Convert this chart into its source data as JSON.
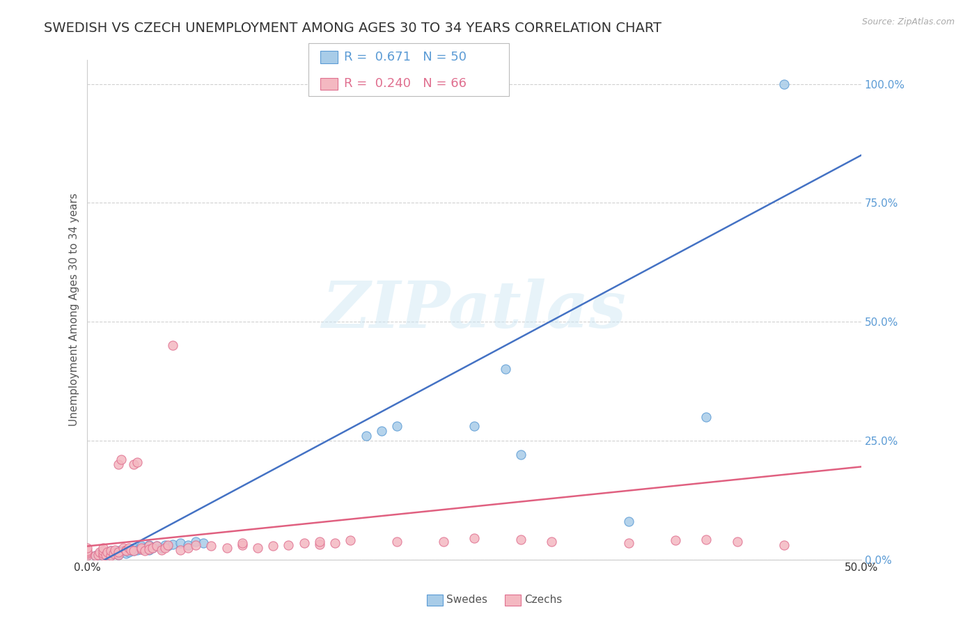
{
  "title": "SWEDISH VS CZECH UNEMPLOYMENT AMONG AGES 30 TO 34 YEARS CORRELATION CHART",
  "source": "Source: ZipAtlas.com",
  "ylabel": "Unemployment Among Ages 30 to 34 years",
  "xlabel_swedes": "Swedes",
  "xlabel_czechs": "Czechs",
  "xlim": [
    0.0,
    0.5
  ],
  "ylim": [
    0.0,
    1.05
  ],
  "yticks": [
    0.0,
    0.25,
    0.5,
    0.75,
    1.0
  ],
  "ytick_labels": [
    "0.0%",
    "25.0%",
    "50.0%",
    "75.0%",
    "100.0%"
  ],
  "xticks": [
    0.0,
    0.5
  ],
  "xtick_labels": [
    "0.0%",
    "50.0%"
  ],
  "legend_blue_r": "0.671",
  "legend_blue_n": "50",
  "legend_pink_r": "0.240",
  "legend_pink_n": "66",
  "blue_scatter_color": "#a8cce8",
  "blue_edge_color": "#5b9bd5",
  "pink_scatter_color": "#f4b8c1",
  "pink_edge_color": "#e07090",
  "blue_line_color": "#4472c4",
  "pink_line_color": "#e06080",
  "yaxis_color": "#5b9bd5",
  "watermark_text": "ZIPatlas",
  "swedes_x": [
    0.0,
    0.005,
    0.007,
    0.008,
    0.01,
    0.01,
    0.01,
    0.012,
    0.013,
    0.015,
    0.015,
    0.015,
    0.017,
    0.018,
    0.02,
    0.02,
    0.02,
    0.022,
    0.023,
    0.025,
    0.025,
    0.027,
    0.028,
    0.03,
    0.03,
    0.032,
    0.035,
    0.035,
    0.037,
    0.04,
    0.04,
    0.042,
    0.045,
    0.048,
    0.05,
    0.052,
    0.055,
    0.06,
    0.065,
    0.07,
    0.075,
    0.18,
    0.19,
    0.2,
    0.25,
    0.27,
    0.28,
    0.35,
    0.4,
    0.45
  ],
  "swedes_y": [
    0.01,
    0.008,
    0.01,
    0.012,
    0.008,
    0.01,
    0.015,
    0.01,
    0.012,
    0.01,
    0.015,
    0.018,
    0.012,
    0.015,
    0.01,
    0.012,
    0.018,
    0.015,
    0.018,
    0.012,
    0.02,
    0.015,
    0.02,
    0.018,
    0.025,
    0.02,
    0.022,
    0.028,
    0.025,
    0.02,
    0.03,
    0.025,
    0.028,
    0.025,
    0.03,
    0.028,
    0.032,
    0.035,
    0.03,
    0.038,
    0.035,
    0.26,
    0.27,
    0.28,
    0.28,
    0.4,
    0.22,
    0.08,
    0.3,
    1.0
  ],
  "czechs_x": [
    0.0,
    0.0,
    0.0,
    0.0,
    0.0,
    0.005,
    0.007,
    0.008,
    0.01,
    0.01,
    0.01,
    0.01,
    0.012,
    0.013,
    0.015,
    0.015,
    0.017,
    0.018,
    0.02,
    0.02,
    0.02,
    0.022,
    0.023,
    0.025,
    0.025,
    0.027,
    0.028,
    0.03,
    0.03,
    0.032,
    0.035,
    0.035,
    0.037,
    0.04,
    0.04,
    0.042,
    0.045,
    0.048,
    0.05,
    0.052,
    0.055,
    0.06,
    0.065,
    0.07,
    0.08,
    0.09,
    0.1,
    0.1,
    0.11,
    0.12,
    0.13,
    0.14,
    0.15,
    0.15,
    0.16,
    0.17,
    0.2,
    0.23,
    0.25,
    0.28,
    0.3,
    0.35,
    0.38,
    0.4,
    0.42,
    0.45
  ],
  "czechs_y": [
    0.008,
    0.012,
    0.015,
    0.018,
    0.025,
    0.008,
    0.01,
    0.015,
    0.008,
    0.012,
    0.018,
    0.025,
    0.01,
    0.015,
    0.008,
    0.018,
    0.012,
    0.02,
    0.01,
    0.015,
    0.2,
    0.21,
    0.025,
    0.02,
    0.018,
    0.025,
    0.02,
    0.018,
    0.2,
    0.205,
    0.022,
    0.025,
    0.018,
    0.028,
    0.022,
    0.025,
    0.028,
    0.02,
    0.025,
    0.03,
    0.45,
    0.02,
    0.025,
    0.03,
    0.028,
    0.025,
    0.03,
    0.035,
    0.025,
    0.028,
    0.03,
    0.035,
    0.032,
    0.038,
    0.035,
    0.04,
    0.038,
    0.038,
    0.045,
    0.042,
    0.038,
    0.035,
    0.04,
    0.042,
    0.038,
    0.03
  ],
  "blue_trend_x": [
    0.0,
    0.5
  ],
  "blue_trend_y": [
    -0.02,
    0.85
  ],
  "pink_trend_x": [
    0.0,
    0.5
  ],
  "pink_trend_y": [
    0.028,
    0.195
  ],
  "grid_color": "#d0d0d0",
  "bg_color": "#ffffff",
  "title_fontsize": 14,
  "axis_fontsize": 11,
  "tick_fontsize": 11,
  "legend_fontsize": 13
}
